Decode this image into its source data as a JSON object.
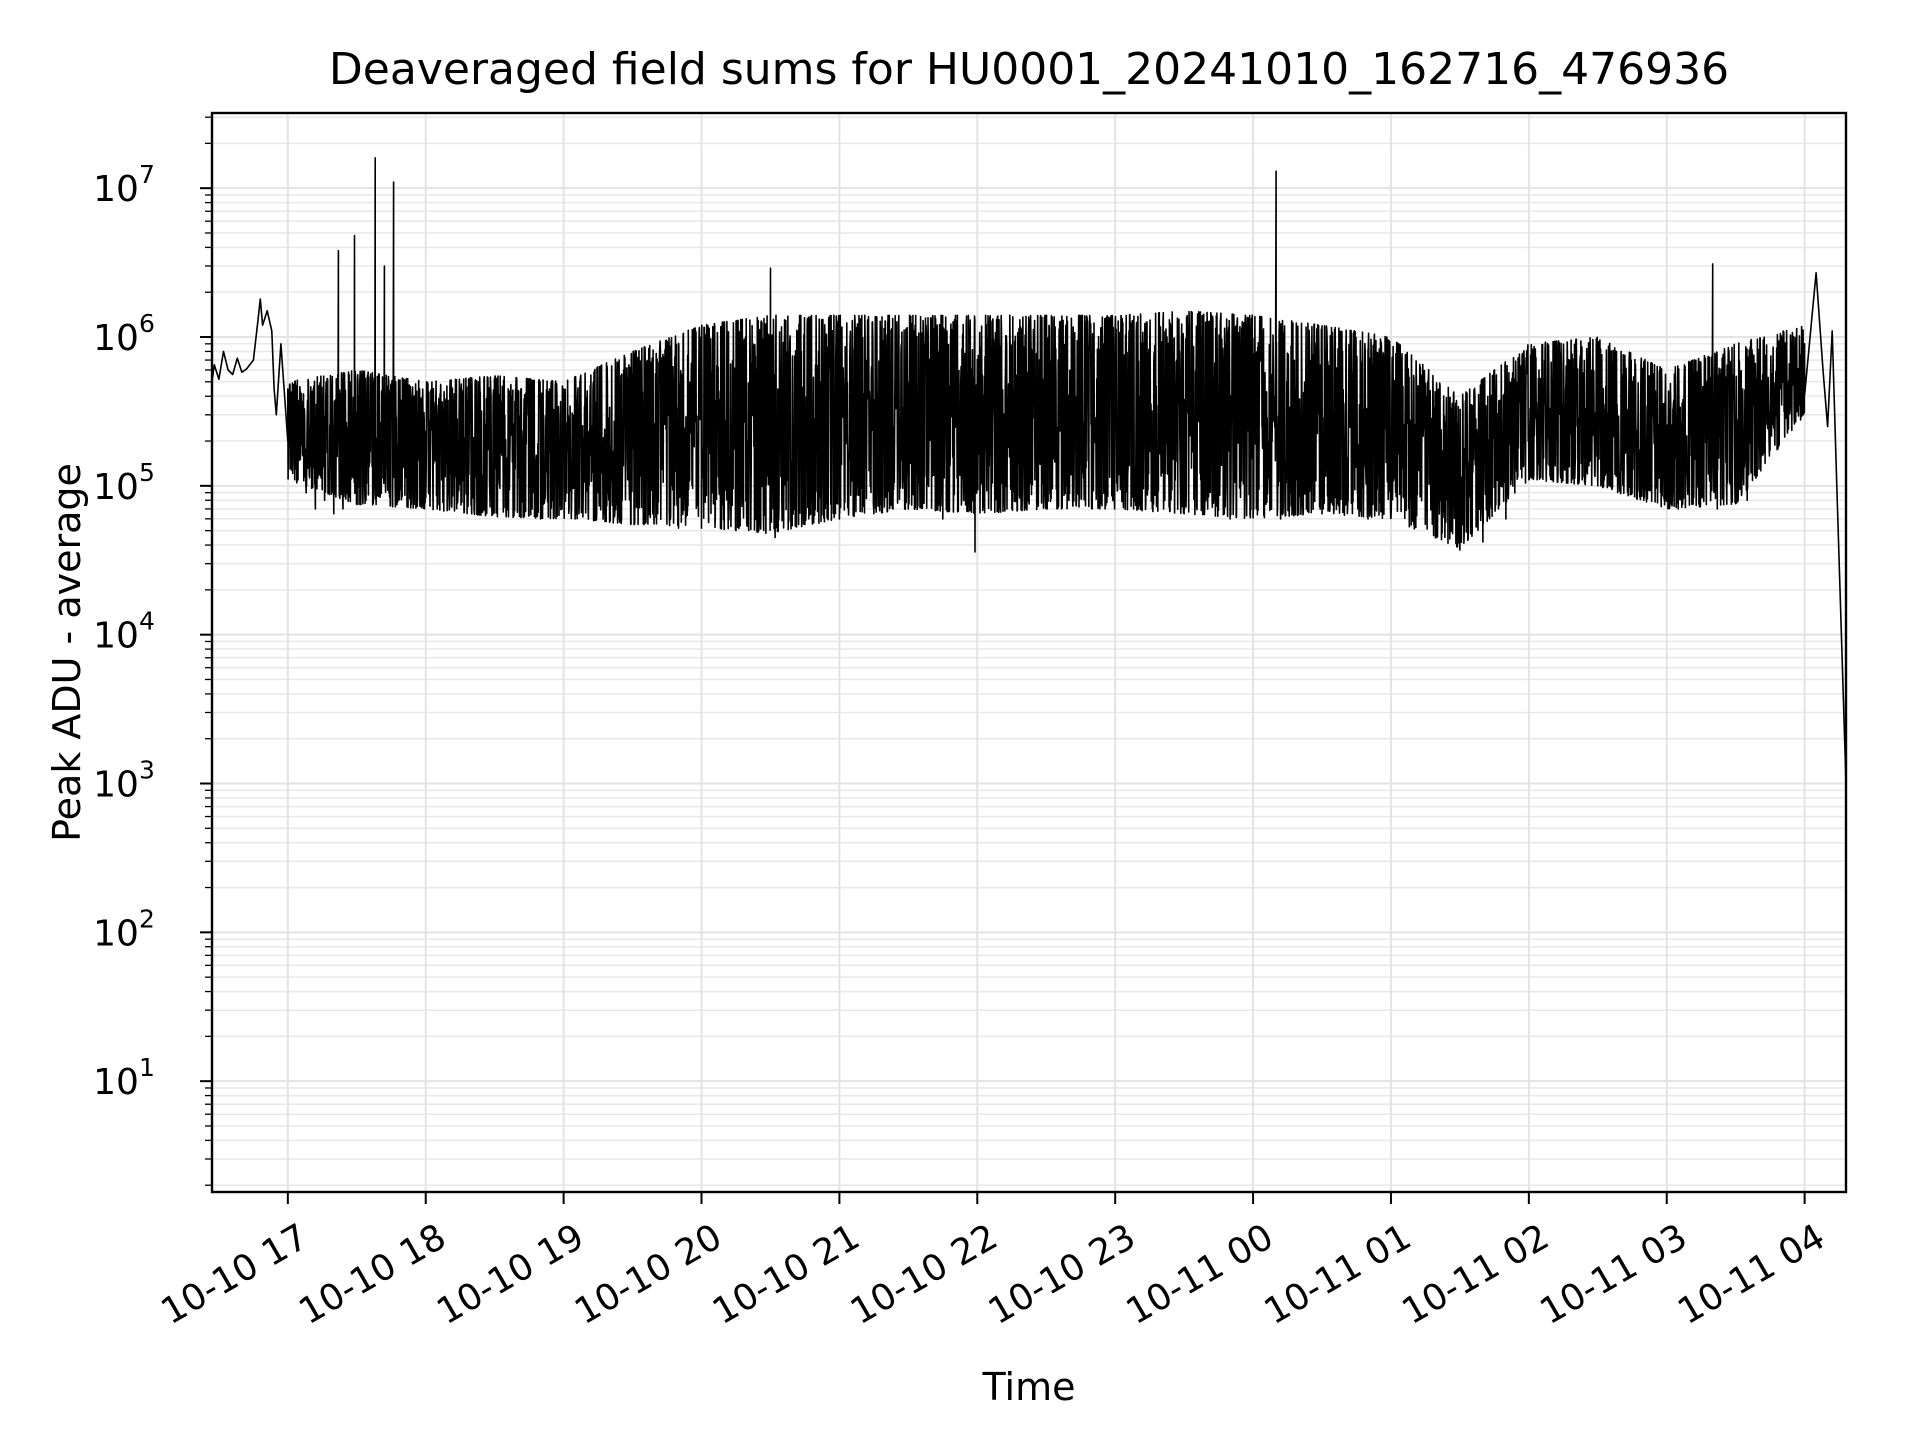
{
  "chart_data": {
    "type": "line",
    "title": "Deaveraged field sums for HU0001_20241010_162716_476936",
    "xlabel": "Time",
    "ylabel": "Peak ADU - average",
    "x_scale": "time",
    "y_scale": "log",
    "xlim": [
      "2024-10-10 16:27",
      "2024-10-11 04:18"
    ],
    "ylim": [
      1.8,
      32000000.0
    ],
    "grid": true,
    "legend": "none",
    "x_ticks": [
      {
        "label": "10-10 17",
        "time": "2024-10-10 17:00"
      },
      {
        "label": "10-10 18",
        "time": "2024-10-10 18:00"
      },
      {
        "label": "10-10 19",
        "time": "2024-10-10 19:00"
      },
      {
        "label": "10-10 20",
        "time": "2024-10-10 20:00"
      },
      {
        "label": "10-10 21",
        "time": "2024-10-10 21:00"
      },
      {
        "label": "10-10 22",
        "time": "2024-10-10 22:00"
      },
      {
        "label": "10-10 23",
        "time": "2024-10-10 23:00"
      },
      {
        "label": "10-11 00",
        "time": "2024-10-11 00:00"
      },
      {
        "label": "10-11 01",
        "time": "2024-10-11 01:00"
      },
      {
        "label": "10-11 02",
        "time": "2024-10-11 02:00"
      },
      {
        "label": "10-11 03",
        "time": "2024-10-11 03:00"
      },
      {
        "label": "10-11 04",
        "time": "2024-10-11 04:00"
      }
    ],
    "y_ticks": [
      {
        "base": "10",
        "exp": "1",
        "value": 10
      },
      {
        "base": "10",
        "exp": "2",
        "value": 100
      },
      {
        "base": "10",
        "exp": "3",
        "value": 1000
      },
      {
        "base": "10",
        "exp": "4",
        "value": 10000
      },
      {
        "base": "10",
        "exp": "5",
        "value": 100000
      },
      {
        "base": "10",
        "exp": "6",
        "value": 1000000
      },
      {
        "base": "10",
        "exp": "7",
        "value": 10000000
      }
    ],
    "series": [
      {
        "color": "#000000",
        "points": [
          [
            "2024-10-10 16:27",
            500000
          ],
          [
            "2024-10-10 16:28",
            650000
          ],
          [
            "2024-10-10 16:30",
            520000
          ],
          [
            "2024-10-10 16:32",
            800000
          ],
          [
            "2024-10-10 16:34",
            600000
          ],
          [
            "2024-10-10 16:36",
            560000
          ],
          [
            "2024-10-10 16:38",
            720000
          ],
          [
            "2024-10-10 16:40",
            580000
          ],
          [
            "2024-10-10 16:42",
            610000
          ],
          [
            "2024-10-10 16:45",
            700000
          ],
          [
            "2024-10-10 16:47",
            1300000
          ],
          [
            "2024-10-10 16:48",
            1800000
          ],
          [
            "2024-10-10 16:49",
            1200000
          ],
          [
            "2024-10-10 16:51",
            1500000
          ],
          [
            "2024-10-10 16:53",
            1100000
          ],
          [
            "2024-10-10 16:54",
            450000
          ],
          [
            "2024-10-10 16:55",
            300000
          ],
          [
            "2024-10-10 16:57",
            900000
          ],
          [
            "2024-10-10 17:00",
            200000
          ],
          [
            "2024-10-10 17:01",
            130000
          ],
          [
            "2024-10-10 17:03",
            110000
          ],
          [
            "2024-10-10 17:08",
            90000
          ],
          [
            "2024-10-10 17:12",
            70000
          ],
          [
            "2024-10-10 17:16",
            80000
          ],
          [
            "2024-10-10 17:20",
            65000
          ],
          [
            "2024-10-10 17:22",
            3800000
          ],
          [
            "2024-10-10 17:24",
            70000
          ],
          [
            "2024-10-10 17:27",
            90000
          ],
          [
            "2024-10-10 17:29",
            4800000
          ],
          [
            "2024-10-10 17:31",
            75000
          ],
          [
            "2024-10-10 17:34",
            80000
          ],
          [
            "2024-10-10 17:38",
            16000000
          ],
          [
            "2024-10-10 17:40",
            85000
          ],
          [
            "2024-10-10 17:42",
            3000000
          ],
          [
            "2024-10-10 17:44",
            90000
          ],
          [
            "2024-10-10 17:46",
            11000000
          ],
          [
            "2024-10-10 17:48",
            80000
          ],
          [
            "2024-10-10 17:55",
            75000
          ],
          [
            "2024-10-10 18:05",
            70000
          ],
          [
            "2024-10-10 18:20",
            65000
          ],
          [
            "2024-10-10 18:35",
            62000
          ],
          [
            "2024-10-10 18:50",
            60000
          ],
          [
            "2024-10-10 19:05",
            60000
          ],
          [
            "2024-10-10 19:20",
            57000
          ],
          [
            "2024-10-10 19:35",
            55000
          ],
          [
            "2024-10-10 19:50",
            52000
          ],
          [
            "2024-10-10 20:00",
            52000
          ],
          [
            "2024-10-10 20:15",
            50000
          ],
          [
            "2024-10-10 20:28",
            48000
          ],
          [
            "2024-10-10 20:30",
            2900000
          ],
          [
            "2024-10-10 20:32",
            45000
          ],
          [
            "2024-10-10 20:45",
            55000
          ],
          [
            "2024-10-10 21:00",
            60000
          ],
          [
            "2024-10-10 21:15",
            65000
          ],
          [
            "2024-10-10 21:30",
            70000
          ],
          [
            "2024-10-10 21:45",
            60000
          ],
          [
            "2024-10-10 21:59",
            36000
          ],
          [
            "2024-10-10 22:10",
            70000
          ],
          [
            "2024-10-10 22:30",
            70000
          ],
          [
            "2024-10-10 22:50",
            70000
          ],
          [
            "2024-10-10 23:10",
            70000
          ],
          [
            "2024-10-10 23:30",
            65000
          ],
          [
            "2024-10-10 23:50",
            60000
          ],
          [
            "2024-10-11 00:10",
            13000000
          ],
          [
            "2024-10-11 00:12",
            60000
          ],
          [
            "2024-10-11 00:30",
            65000
          ],
          [
            "2024-10-11 00:50",
            60000
          ],
          [
            "2024-10-11 01:10",
            55000
          ],
          [
            "2024-10-11 01:20",
            45000
          ],
          [
            "2024-10-11 01:30",
            37000
          ],
          [
            "2024-10-11 01:40",
            42000
          ],
          [
            "2024-10-11 01:50",
            60000
          ],
          [
            "2024-10-11 02:00",
            120000
          ],
          [
            "2024-10-11 02:10",
            150000
          ],
          [
            "2024-10-11 02:20",
            120000
          ],
          [
            "2024-10-11 02:35",
            100000
          ],
          [
            "2024-10-11 02:50",
            80000
          ],
          [
            "2024-10-11 03:05",
            70000
          ],
          [
            "2024-10-11 03:20",
            3100000
          ],
          [
            "2024-10-11 03:22",
            70000
          ],
          [
            "2024-10-11 03:35",
            80000
          ],
          [
            "2024-10-11 03:50",
            350000
          ],
          [
            "2024-10-11 04:00",
            900000
          ],
          [
            "2024-10-11 04:05",
            2700000
          ],
          [
            "2024-10-11 04:08",
            600000
          ],
          [
            "2024-10-11 04:10",
            250000
          ],
          [
            "2024-10-11 04:12",
            1100000
          ],
          [
            "2024-10-11 04:14",
            100000
          ],
          [
            "2024-10-11 04:18",
            1000
          ]
        ],
        "upper_envelope": [
          [
            "2024-10-10 17:00",
            500000
          ],
          [
            "2024-10-10 17:30",
            600000
          ],
          [
            "2024-10-10 18:00",
            500000
          ],
          [
            "2024-10-10 18:30",
            550000
          ],
          [
            "2024-10-10 19:00",
            500000
          ],
          [
            "2024-10-10 19:30",
            800000
          ],
          [
            "2024-10-10 20:00",
            1200000
          ],
          [
            "2024-10-10 20:30",
            1400000
          ],
          [
            "2024-10-10 21:00",
            1400000
          ],
          [
            "2024-10-10 21:30",
            1400000
          ],
          [
            "2024-10-10 22:00",
            1400000
          ],
          [
            "2024-10-10 22:30",
            1400000
          ],
          [
            "2024-10-10 23:00",
            1400000
          ],
          [
            "2024-10-10 23:30",
            1500000
          ],
          [
            "2024-10-11 00:00",
            1400000
          ],
          [
            "2024-10-11 00:30",
            1200000
          ],
          [
            "2024-10-11 01:00",
            1000000
          ],
          [
            "2024-10-11 01:30",
            400000
          ],
          [
            "2024-10-11 02:00",
            900000
          ],
          [
            "2024-10-11 02:30",
            1000000
          ],
          [
            "2024-10-11 03:00",
            600000
          ],
          [
            "2024-10-11 03:30",
            900000
          ],
          [
            "2024-10-11 04:00",
            1200000
          ]
        ],
        "lower_envelope": [
          [
            "2024-10-10 17:00",
            110000
          ],
          [
            "2024-10-10 17:30",
            75000
          ],
          [
            "2024-10-10 18:00",
            70000
          ],
          [
            "2024-10-10 18:30",
            62000
          ],
          [
            "2024-10-10 19:00",
            60000
          ],
          [
            "2024-10-10 19:30",
            55000
          ],
          [
            "2024-10-10 20:00",
            52000
          ],
          [
            "2024-10-10 20:30",
            48000
          ],
          [
            "2024-10-10 21:00",
            60000
          ],
          [
            "2024-10-10 21:30",
            70000
          ],
          [
            "2024-10-10 22:00",
            65000
          ],
          [
            "2024-10-10 22:30",
            70000
          ],
          [
            "2024-10-10 23:00",
            70000
          ],
          [
            "2024-10-10 23:30",
            65000
          ],
          [
            "2024-10-11 00:00",
            60000
          ],
          [
            "2024-10-11 00:30",
            65000
          ],
          [
            "2024-10-11 01:00",
            60000
          ],
          [
            "2024-10-11 01:30",
            38000
          ],
          [
            "2024-10-11 02:00",
            110000
          ],
          [
            "2024-10-11 02:30",
            100000
          ],
          [
            "2024-10-11 03:00",
            70000
          ],
          [
            "2024-10-11 03:30",
            75000
          ],
          [
            "2024-10-11 04:00",
            300000
          ]
        ]
      }
    ]
  }
}
